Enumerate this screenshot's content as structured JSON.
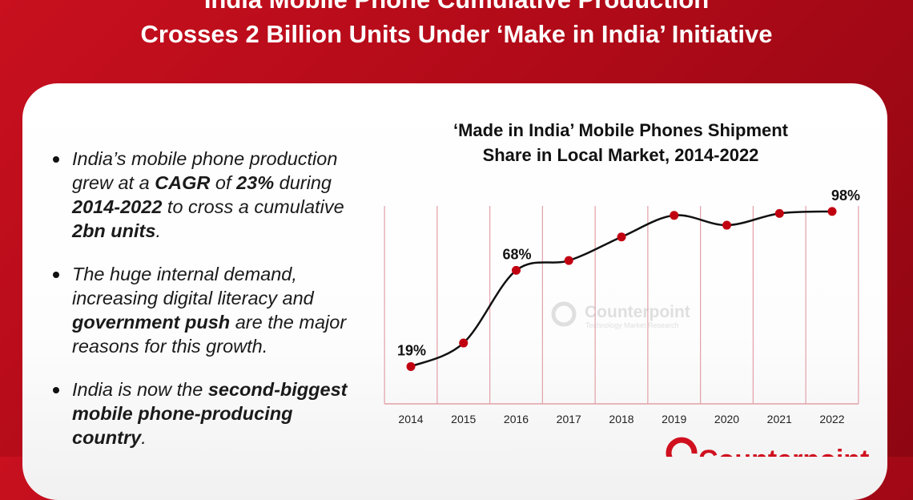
{
  "header": {
    "title_line1": "India Mobile Phone Cumulative Production",
    "title_line2": "Crosses 2 Billion Units Under ‘Make in India’ Initiative"
  },
  "bullets": [
    [
      {
        "t": "India’s mobile phone production grew at a ",
        "b": false
      },
      {
        "t": "CAGR",
        "b": true
      },
      {
        "t": " of ",
        "b": false
      },
      {
        "t": "23%",
        "b": true
      },
      {
        "t": " during ",
        "b": false
      },
      {
        "t": "2014-2022",
        "b": true
      },
      {
        "t": " to cross a cumulative ",
        "b": false
      },
      {
        "t": "2bn units",
        "b": true
      },
      {
        "t": ".",
        "b": false
      }
    ],
    [
      {
        "t": "The huge internal demand, increasing digital literacy and ",
        "b": false
      },
      {
        "t": "government push",
        "b": true
      },
      {
        "t": " are the major reasons for this growth.",
        "b": false
      }
    ],
    [
      {
        "t": "India is now the ",
        "b": false
      },
      {
        "t": "second-biggest mobile phone-producing country",
        "b": true
      },
      {
        "t": ".",
        "b": false
      }
    ]
  ],
  "watermark": {
    "name": "Counterpoint",
    "tagline": "Technology Market Research"
  },
  "logo": {
    "text": "Counterpoint"
  },
  "colors": {
    "background": "#b00a18",
    "point": "#c00010",
    "line": "#111111",
    "grid": "#e3a0a8"
  },
  "chart_data": {
    "type": "line",
    "title_line1": "‘Made in India’ Mobile Phones Shipment",
    "title_line2": "Share in Local Market, 2014-2022",
    "categories": [
      "2014",
      "2015",
      "2016",
      "2017",
      "2018",
      "2019",
      "2020",
      "2021",
      "2022"
    ],
    "values": [
      19,
      31,
      68,
      73,
      85,
      96,
      91,
      97,
      98
    ],
    "data_labels": {
      "2014": "19%",
      "2016": "68%",
      "2022": "98%"
    },
    "ylim": [
      0,
      100
    ],
    "grid": "vertical",
    "smooth": true
  }
}
